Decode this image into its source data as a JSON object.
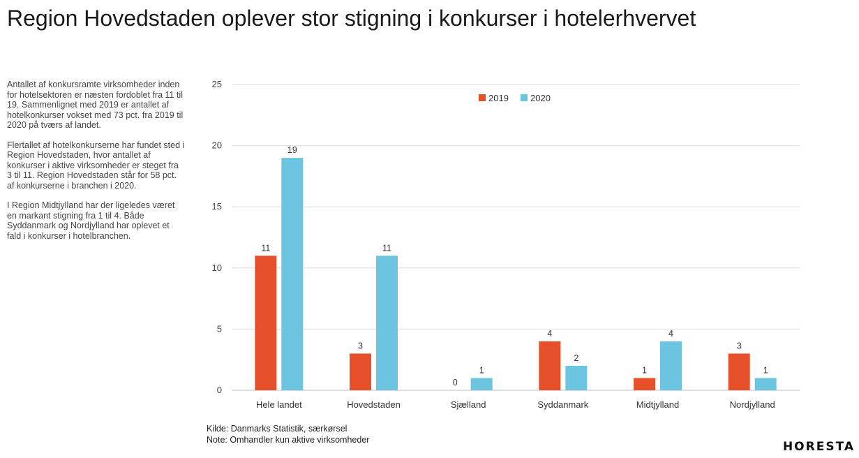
{
  "title": "Region Hovedstaden oplever stor stigning i konkurser i hotelerhvervet",
  "description": [
    "Antallet af konkursramte virksomheder inden for hotelsektoren er næsten fordoblet fra 11 til 19. Sammenlignet med 2019 er antallet af hotelkonkurser vokset med 73 pct. fra 2019 til 2020 på tværs af landet.",
    "Flertallet af hotelkonkurserne har fundet sted i Region Hovedstaden, hvor antallet af konkurser i aktive virksomheder er steget fra 3 til 11. Region Hovedstaden står for 58 pct. af konkurserne i branchen i 2020.",
    "I Region Midtjylland har der ligeledes været en markant stigning fra 1 til 4. Både Syddanmark og Nordjylland har oplevet et fald i konkurser i hotelbranchen."
  ],
  "footer": {
    "source": "Kilde: Danmarks Statistik, særkørsel",
    "note": "Note: Omhandler kun aktive virksomheder"
  },
  "logo": "HORESTA",
  "chart_data": {
    "type": "bar",
    "categories": [
      "Hele landet",
      "Hovedstaden",
      "Sjælland",
      "Syddanmark",
      "Midtjylland",
      "Nordjylland"
    ],
    "series": [
      {
        "name": "2019",
        "color": "#e5502b",
        "values": [
          11,
          3,
          0,
          4,
          1,
          3
        ]
      },
      {
        "name": "2020",
        "color": "#6cc5e0",
        "values": [
          19,
          11,
          1,
          2,
          4,
          1
        ]
      }
    ],
    "ylim": [
      0,
      25
    ],
    "yticks": [
      0,
      5,
      10,
      15,
      20,
      25
    ],
    "grid": true,
    "legend": "top-center",
    "data_labels": true
  }
}
